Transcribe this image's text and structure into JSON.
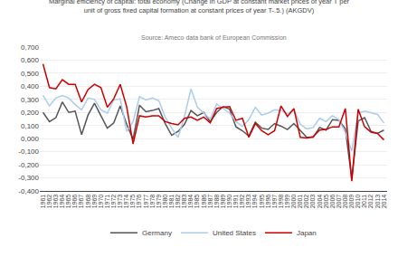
{
  "chart_data": {
    "type": "line",
    "title": "Marginal efficiency of capital: total economy (Change in GDP at constant market prices of year T per\nunit of gross fixed capital formation at constant prices of year T-.5.) (AKGDV)",
    "subtitle": "Source: Ameco data bank of European Commission",
    "x": [
      1961,
      1962,
      1963,
      1964,
      1965,
      1966,
      1967,
      1968,
      1969,
      1970,
      1971,
      1972,
      1973,
      1974,
      1975,
      1976,
      1977,
      1978,
      1979,
      1980,
      1981,
      1982,
      1983,
      1984,
      1985,
      1986,
      1987,
      1988,
      1989,
      1990,
      1991,
      1992,
      1993,
      1994,
      1995,
      1996,
      1997,
      1998,
      1999,
      2000,
      2001,
      2002,
      2003,
      2004,
      2005,
      2006,
      2007,
      2008,
      2009,
      2010,
      2011,
      2012,
      2013,
      2014
    ],
    "series": [
      {
        "name": "Germany",
        "color": "#555555",
        "values": [
          0.2,
          0.13,
          0.16,
          0.28,
          0.2,
          0.21,
          0.03,
          0.18,
          0.27,
          0.18,
          0.08,
          0.12,
          0.25,
          0.11,
          -0.005,
          0.255,
          0.205,
          0.215,
          0.23,
          0.115,
          0.025,
          0.055,
          0.11,
          0.215,
          0.175,
          0.2,
          0.13,
          0.2,
          0.245,
          0.225,
          0.09,
          0.06,
          0.02,
          0.125,
          0.08,
          0.07,
          0.115,
          0.095,
          0.07,
          0.115,
          0.06,
          0.01,
          0.01,
          0.085,
          0.065,
          0.145,
          0.14,
          0.075,
          -0.31,
          0.135,
          0.16,
          0.055,
          0.04,
          0.065
        ]
      },
      {
        "name": "United States",
        "color": "#aaccee",
        "values": [
          0.33,
          0.25,
          0.31,
          0.33,
          0.31,
          0.26,
          0.22,
          0.31,
          0.3,
          0.22,
          0.195,
          0.295,
          0.305,
          0.055,
          0.13,
          0.32,
          0.295,
          0.31,
          0.29,
          0.165,
          0.08,
          0.01,
          0.17,
          0.38,
          0.24,
          0.195,
          0.15,
          0.265,
          0.23,
          0.195,
          0.13,
          0.095,
          0.145,
          0.24,
          0.18,
          0.195,
          0.22,
          0.215,
          0.19,
          0.22,
          0.11,
          0.075,
          0.085,
          0.155,
          0.13,
          0.175,
          0.145,
          0.045,
          -0.095,
          0.195,
          0.21,
          0.195,
          0.185,
          0.12
        ]
      },
      {
        "name": "Japan",
        "color": "#cc0000",
        "values": [
          0.57,
          0.39,
          0.38,
          0.45,
          0.415,
          0.415,
          0.28,
          0.375,
          0.415,
          0.39,
          0.24,
          0.305,
          0.415,
          0.245,
          -0.04,
          0.175,
          0.165,
          0.175,
          0.175,
          0.13,
          0.115,
          0.105,
          0.155,
          0.165,
          0.14,
          0.165,
          0.12,
          0.23,
          0.24,
          0.245,
          0.14,
          0.155,
          0.01,
          0.115,
          0.06,
          0.03,
          0.06,
          0.25,
          0.17,
          0.23,
          0.01,
          0.005,
          0.015,
          0.065,
          0.07,
          0.09,
          0.09,
          0.23,
          -0.325,
          0.225,
          0.09,
          0.05,
          0.04,
          -0.01
        ]
      }
    ],
    "xlim": [
      1960.5,
      2014.5
    ],
    "xticks": [
      1961,
      1962,
      1963,
      1964,
      1965,
      1966,
      1967,
      1968,
      1969,
      1970,
      1971,
      1972,
      1973,
      1974,
      1975,
      1976,
      1977,
      1978,
      1979,
      1980,
      1981,
      1982,
      1983,
      1984,
      1985,
      1986,
      1987,
      1988,
      1989,
      1990,
      1991,
      1992,
      1993,
      1994,
      1995,
      1996,
      1997,
      1998,
      1999,
      2000,
      2001,
      2002,
      2003,
      2004,
      2005,
      2006,
      2007,
      2008,
      2009,
      2010,
      2011,
      2012,
      2013,
      2014
    ],
    "ylim": [
      -0.4,
      0.7
    ],
    "yticks": [
      {
        "value": -0.4,
        "label": "-0,400"
      },
      {
        "value": -0.3,
        "label": "-0,300"
      },
      {
        "value": -0.2,
        "label": "-0,200"
      },
      {
        "value": -0.1,
        "label": "-0,100"
      },
      {
        "value": 0.0,
        "label": "0,000"
      },
      {
        "value": 0.1,
        "label": "0,100"
      },
      {
        "value": 0.2,
        "label": "0,200"
      },
      {
        "value": 0.3,
        "label": "0,300"
      },
      {
        "value": 0.4,
        "label": "0,400"
      },
      {
        "value": 0.5,
        "label": "0,500"
      },
      {
        "value": 0.6,
        "label": "0,600"
      },
      {
        "value": 0.7,
        "label": "0,700"
      }
    ],
    "grid": "y",
    "legend": "bottom"
  }
}
